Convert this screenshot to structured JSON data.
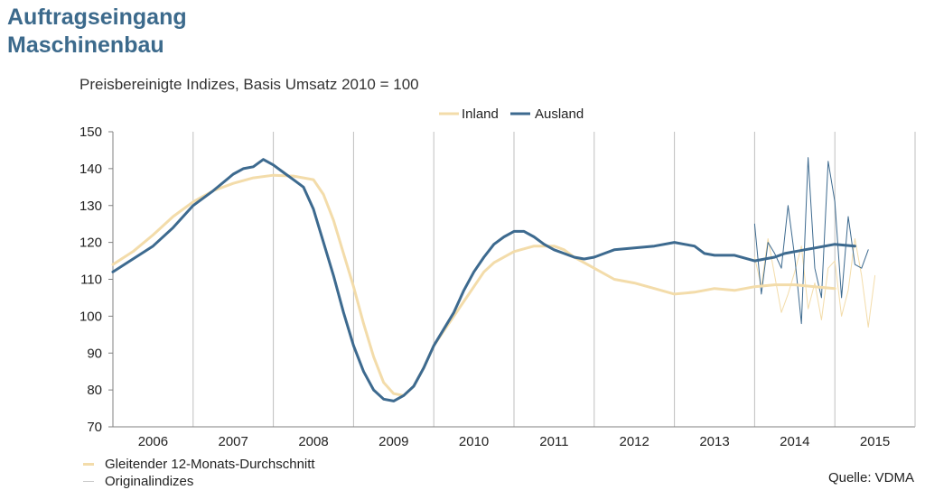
{
  "header": {
    "title_line1": "Auftragseingang",
    "title_line2": "Maschinenbau",
    "subtitle": "Preisbereinigte Indizes, Basis Umsatz 2010 = 100"
  },
  "footer": {
    "legend_moving_average": "Gleitender 12-Monats-Durchschnitt",
    "legend_original": "Originalindizes",
    "source": "Quelle: VDMA"
  },
  "chart_data": {
    "type": "line",
    "x_unit": "year (decimal)",
    "categories": [
      "2006",
      "2007",
      "2008",
      "2009",
      "2010",
      "2011",
      "2012",
      "2013",
      "2014",
      "2015"
    ],
    "ylim": [
      70,
      150
    ],
    "yticks": [
      70,
      80,
      90,
      100,
      110,
      120,
      130,
      140,
      150
    ],
    "grid": "vertical lines between years",
    "legend_position": "top-center",
    "colors": {
      "Inland": "#f3dcaa",
      "Ausland": "#3d6a8f"
    },
    "series": [
      {
        "name": "Inland",
        "kind": "moving-average",
        "points": [
          [
            2005.5,
            114
          ],
          [
            2005.75,
            117.5
          ],
          [
            2006.0,
            122
          ],
          [
            2006.25,
            127
          ],
          [
            2006.5,
            131
          ],
          [
            2006.75,
            134
          ],
          [
            2007.0,
            136
          ],
          [
            2007.25,
            137.5
          ],
          [
            2007.5,
            138.2
          ],
          [
            2007.75,
            138
          ],
          [
            2008.0,
            137
          ],
          [
            2008.125,
            133
          ],
          [
            2008.25,
            126
          ],
          [
            2008.375,
            117
          ],
          [
            2008.5,
            108
          ],
          [
            2008.625,
            98
          ],
          [
            2008.75,
            89
          ],
          [
            2008.875,
            82
          ],
          [
            2009.0,
            79
          ],
          [
            2009.125,
            78.5
          ],
          [
            2009.25,
            81
          ],
          [
            2009.375,
            86
          ],
          [
            2009.5,
            92
          ],
          [
            2009.625,
            96
          ],
          [
            2009.75,
            100
          ],
          [
            2009.875,
            104
          ],
          [
            2010.0,
            108
          ],
          [
            2010.125,
            112
          ],
          [
            2010.25,
            114.5
          ],
          [
            2010.5,
            117.5
          ],
          [
            2010.75,
            119
          ],
          [
            2011.0,
            119
          ],
          [
            2011.125,
            118
          ],
          [
            2011.25,
            116
          ],
          [
            2011.5,
            113
          ],
          [
            2011.75,
            110
          ],
          [
            2012.0,
            109
          ],
          [
            2012.25,
            107.5
          ],
          [
            2012.5,
            106
          ],
          [
            2012.75,
            106.5
          ],
          [
            2013.0,
            107.5
          ],
          [
            2013.25,
            107
          ],
          [
            2013.5,
            108
          ],
          [
            2013.75,
            108.5
          ],
          [
            2014.0,
            108.5
          ],
          [
            2014.25,
            108
          ],
          [
            2014.5,
            107.5
          ]
        ]
      },
      {
        "name": "Ausland",
        "kind": "moving-average",
        "points": [
          [
            2005.5,
            112
          ],
          [
            2005.75,
            115.5
          ],
          [
            2006.0,
            119
          ],
          [
            2006.25,
            124
          ],
          [
            2006.5,
            130
          ],
          [
            2006.75,
            134
          ],
          [
            2007.0,
            138.5
          ],
          [
            2007.125,
            140
          ],
          [
            2007.25,
            140.5
          ],
          [
            2007.375,
            142.5
          ],
          [
            2007.5,
            141
          ],
          [
            2007.625,
            139
          ],
          [
            2007.75,
            137
          ],
          [
            2007.875,
            135
          ],
          [
            2008.0,
            129
          ],
          [
            2008.125,
            120
          ],
          [
            2008.25,
            111
          ],
          [
            2008.375,
            101
          ],
          [
            2008.5,
            92
          ],
          [
            2008.625,
            85
          ],
          [
            2008.75,
            80
          ],
          [
            2008.875,
            77.5
          ],
          [
            2009.0,
            77
          ],
          [
            2009.125,
            78.5
          ],
          [
            2009.25,
            81
          ],
          [
            2009.375,
            86
          ],
          [
            2009.5,
            92
          ],
          [
            2009.625,
            96.5
          ],
          [
            2009.75,
            101
          ],
          [
            2009.875,
            107
          ],
          [
            2010.0,
            112
          ],
          [
            2010.125,
            116
          ],
          [
            2010.25,
            119.5
          ],
          [
            2010.375,
            121.5
          ],
          [
            2010.5,
            123
          ],
          [
            2010.625,
            123
          ],
          [
            2010.75,
            121.5
          ],
          [
            2010.875,
            119.5
          ],
          [
            2011.0,
            118
          ],
          [
            2011.125,
            117
          ],
          [
            2011.25,
            116
          ],
          [
            2011.375,
            115.5
          ],
          [
            2011.5,
            116
          ],
          [
            2011.625,
            117
          ],
          [
            2011.75,
            118
          ],
          [
            2012.0,
            118.5
          ],
          [
            2012.25,
            119
          ],
          [
            2012.5,
            120
          ],
          [
            2012.625,
            119.5
          ],
          [
            2012.75,
            119
          ],
          [
            2012.875,
            117
          ],
          [
            2013.0,
            116.5
          ],
          [
            2013.25,
            116.5
          ],
          [
            2013.5,
            115
          ],
          [
            2013.625,
            115.5
          ],
          [
            2013.75,
            116
          ],
          [
            2013.875,
            117
          ],
          [
            2014.0,
            117.5
          ],
          [
            2014.25,
            118.5
          ],
          [
            2014.5,
            119.5
          ],
          [
            2014.75,
            119
          ]
        ]
      },
      {
        "name": "Inland",
        "kind": "original",
        "points": [
          [
            2013.5,
            116
          ],
          [
            2013.583,
            108
          ],
          [
            2013.667,
            121
          ],
          [
            2013.75,
            111
          ],
          [
            2013.833,
            101
          ],
          [
            2013.917,
            106
          ],
          [
            2014.0,
            112
          ],
          [
            2014.083,
            119
          ],
          [
            2014.167,
            102
          ],
          [
            2014.25,
            109
          ],
          [
            2014.333,
            99
          ],
          [
            2014.417,
            113
          ],
          [
            2014.5,
            115
          ],
          [
            2014.583,
            100
          ],
          [
            2014.667,
            107
          ],
          [
            2014.75,
            121
          ],
          [
            2014.833,
            111
          ],
          [
            2014.917,
            97
          ],
          [
            2015.0,
            111
          ]
        ]
      },
      {
        "name": "Ausland",
        "kind": "original",
        "points": [
          [
            2013.5,
            125
          ],
          [
            2013.583,
            106
          ],
          [
            2013.667,
            120
          ],
          [
            2013.75,
            117
          ],
          [
            2013.833,
            113
          ],
          [
            2013.917,
            130
          ],
          [
            2014.0,
            116
          ],
          [
            2014.083,
            98
          ],
          [
            2014.167,
            143
          ],
          [
            2014.25,
            113
          ],
          [
            2014.333,
            105
          ],
          [
            2014.417,
            142
          ],
          [
            2014.5,
            131
          ],
          [
            2014.583,
            105
          ],
          [
            2014.667,
            127
          ],
          [
            2014.75,
            114
          ],
          [
            2014.833,
            113
          ],
          [
            2014.917,
            118
          ]
        ]
      }
    ]
  }
}
